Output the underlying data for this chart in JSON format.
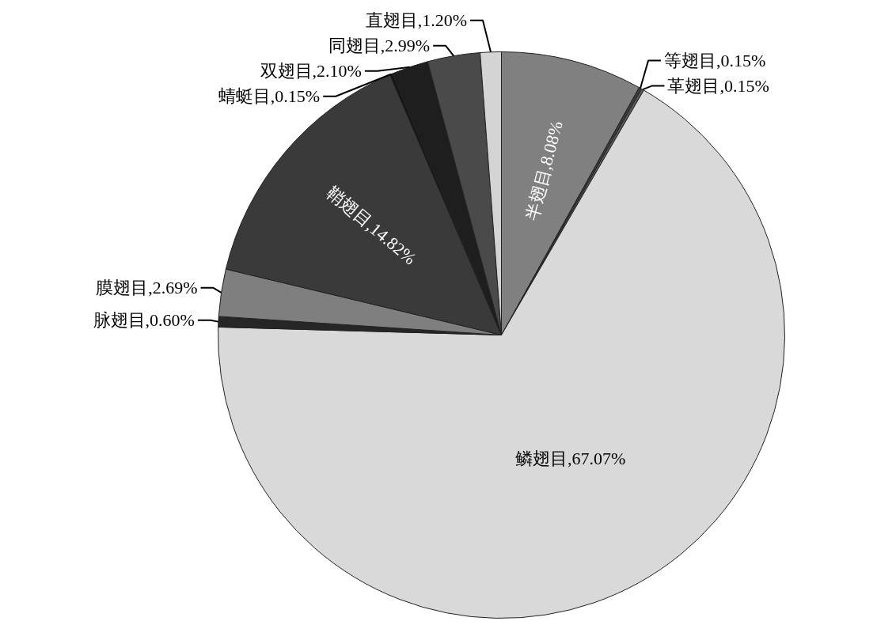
{
  "chart_data": {
    "type": "pie",
    "categories": [
      "半翅目",
      "等翅目",
      "革翅目",
      "鳞翅目",
      "脉翅目",
      "膜翅目",
      "鞘翅目",
      "蜻蜓目",
      "双翅目",
      "同翅目",
      "直翅目"
    ],
    "values": [
      8.08,
      0.15,
      0.15,
      67.07,
      0.6,
      2.69,
      14.82,
      0.15,
      2.1,
      2.99,
      1.2
    ],
    "value_labels": [
      "8.08%",
      "0.15%",
      "0.15%",
      "67.07%",
      "0.60%",
      "2.69%",
      "14.82%",
      "0.15%",
      "2.10%",
      "2.99%",
      "1.20%"
    ],
    "colors": [
      "#808080",
      "#3c3c3c",
      "#5a5a5a",
      "#d9d9d9",
      "#262626",
      "#7f7f7f",
      "#3a3a3a",
      "#141414",
      "#1e1e1e",
      "#4a4a4a",
      "#d4d4d4"
    ]
  }
}
